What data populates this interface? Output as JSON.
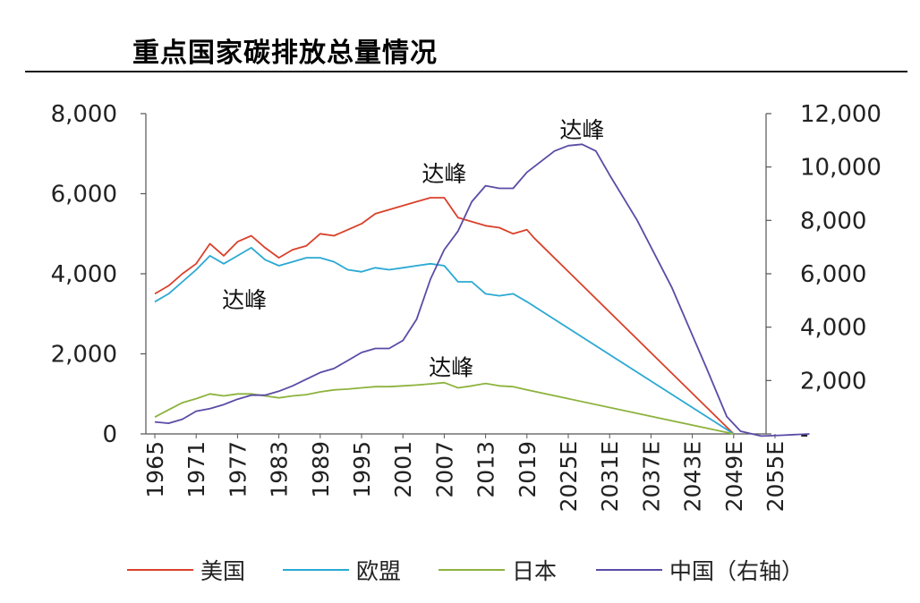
{
  "chart_data": {
    "type": "line",
    "title": "重点国家碳排放总量情况",
    "x_ticks": [
      "1965",
      "1971",
      "1977",
      "1983",
      "1989",
      "1995",
      "2001",
      "2007",
      "2013",
      "2019",
      "2025E",
      "2031E",
      "2037E",
      "2043E",
      "2049E",
      "2055E"
    ],
    "y_left_ticks": [
      "0",
      "2,000",
      "4,000",
      "6,000",
      "8,000"
    ],
    "y_right_ticks": [
      "-",
      "2,000",
      "4,000",
      "6,000",
      "8,000",
      "10,000",
      "12,000"
    ],
    "ylim_left": [
      0,
      8000
    ],
    "ylim_right": [
      0,
      12000
    ],
    "xlim": [
      1965,
      2060
    ],
    "grid": false,
    "legend_position": "bottom",
    "series": [
      {
        "name": "美国",
        "axis": "left",
        "color": "#d9412b",
        "points": [
          [
            1965,
            3500
          ],
          [
            1967,
            3700
          ],
          [
            1969,
            4000
          ],
          [
            1971,
            4250
          ],
          [
            1973,
            4750
          ],
          [
            1975,
            4450
          ],
          [
            1977,
            4800
          ],
          [
            1979,
            4950
          ],
          [
            1981,
            4650
          ],
          [
            1983,
            4400
          ],
          [
            1985,
            4600
          ],
          [
            1987,
            4700
          ],
          [
            1989,
            5000
          ],
          [
            1991,
            4950
          ],
          [
            1993,
            5100
          ],
          [
            1995,
            5250
          ],
          [
            1997,
            5500
          ],
          [
            1999,
            5600
          ],
          [
            2001,
            5700
          ],
          [
            2003,
            5800
          ],
          [
            2005,
            5900
          ],
          [
            2007,
            5900
          ],
          [
            2009,
            5400
          ],
          [
            2011,
            5300
          ],
          [
            2013,
            5200
          ],
          [
            2015,
            5150
          ],
          [
            2017,
            5000
          ],
          [
            2019,
            5100
          ],
          [
            2020,
            4900
          ],
          [
            2049,
            0
          ]
        ]
      },
      {
        "name": "欧盟",
        "axis": "left",
        "color": "#2aa9d3",
        "points": [
          [
            1965,
            3300
          ],
          [
            1967,
            3500
          ],
          [
            1969,
            3800
          ],
          [
            1971,
            4100
          ],
          [
            1973,
            4450
          ],
          [
            1975,
            4250
          ],
          [
            1977,
            4450
          ],
          [
            1979,
            4650
          ],
          [
            1981,
            4350
          ],
          [
            1983,
            4200
          ],
          [
            1985,
            4300
          ],
          [
            1987,
            4400
          ],
          [
            1989,
            4400
          ],
          [
            1991,
            4300
          ],
          [
            1993,
            4100
          ],
          [
            1995,
            4050
          ],
          [
            1997,
            4150
          ],
          [
            1999,
            4100
          ],
          [
            2001,
            4150
          ],
          [
            2003,
            4200
          ],
          [
            2005,
            4250
          ],
          [
            2007,
            4200
          ],
          [
            2009,
            3800
          ],
          [
            2011,
            3800
          ],
          [
            2013,
            3500
          ],
          [
            2015,
            3450
          ],
          [
            2017,
            3500
          ],
          [
            2019,
            3300
          ],
          [
            2049,
            0
          ]
        ]
      },
      {
        "name": "日本",
        "axis": "left",
        "color": "#8db33e",
        "points": [
          [
            1965,
            420
          ],
          [
            1967,
            600
          ],
          [
            1969,
            780
          ],
          [
            1971,
            880
          ],
          [
            1973,
            1000
          ],
          [
            1975,
            950
          ],
          [
            1977,
            1000
          ],
          [
            1979,
            1000
          ],
          [
            1981,
            950
          ],
          [
            1983,
            900
          ],
          [
            1985,
            950
          ],
          [
            1987,
            980
          ],
          [
            1989,
            1050
          ],
          [
            1991,
            1100
          ],
          [
            1993,
            1120
          ],
          [
            1995,
            1150
          ],
          [
            1997,
            1180
          ],
          [
            1999,
            1180
          ],
          [
            2001,
            1200
          ],
          [
            2003,
            1220
          ],
          [
            2005,
            1250
          ],
          [
            2007,
            1280
          ],
          [
            2009,
            1150
          ],
          [
            2011,
            1200
          ],
          [
            2013,
            1260
          ],
          [
            2015,
            1200
          ],
          [
            2017,
            1180
          ],
          [
            2019,
            1100
          ],
          [
            2049,
            0
          ]
        ]
      },
      {
        "name": "中国（右轴）",
        "axis": "right",
        "color": "#5b4ba6",
        "points": [
          [
            1965,
            450
          ],
          [
            1967,
            400
          ],
          [
            1969,
            550
          ],
          [
            1971,
            850
          ],
          [
            1973,
            950
          ],
          [
            1975,
            1100
          ],
          [
            1977,
            1300
          ],
          [
            1979,
            1450
          ],
          [
            1981,
            1450
          ],
          [
            1983,
            1600
          ],
          [
            1985,
            1800
          ],
          [
            1987,
            2050
          ],
          [
            1989,
            2300
          ],
          [
            1991,
            2450
          ],
          [
            1993,
            2750
          ],
          [
            1995,
            3050
          ],
          [
            1997,
            3200
          ],
          [
            1999,
            3200
          ],
          [
            2001,
            3500
          ],
          [
            2003,
            4300
          ],
          [
            2005,
            5800
          ],
          [
            2007,
            6900
          ],
          [
            2009,
            7600
          ],
          [
            2011,
            8700
          ],
          [
            2013,
            9300
          ],
          [
            2015,
            9200
          ],
          [
            2017,
            9200
          ],
          [
            2019,
            9800
          ],
          [
            2021,
            10200
          ],
          [
            2023,
            10600
          ],
          [
            2025,
            10800
          ],
          [
            2027,
            10850
          ],
          [
            2029,
            10600
          ],
          [
            2031,
            9700
          ],
          [
            2035,
            8000
          ],
          [
            2040,
            5500
          ],
          [
            2045,
            2500
          ],
          [
            2048,
            650
          ],
          [
            2050,
            100
          ],
          [
            2053,
            -80
          ],
          [
            2056,
            -50
          ],
          [
            2060,
            0
          ]
        ]
      }
    ],
    "annotations": [
      {
        "text": "达峰",
        "series": "欧盟",
        "x": 1978,
        "y_left": 3350
      },
      {
        "text": "达峰",
        "series": "美国",
        "x": 2007,
        "y_left": 6500
      },
      {
        "text": "达峰",
        "series": "中国（右轴）",
        "x": 2027,
        "y_left": 7600
      },
      {
        "text": "达峰",
        "series": "日本",
        "x": 2008,
        "y_left": 1670
      }
    ]
  }
}
